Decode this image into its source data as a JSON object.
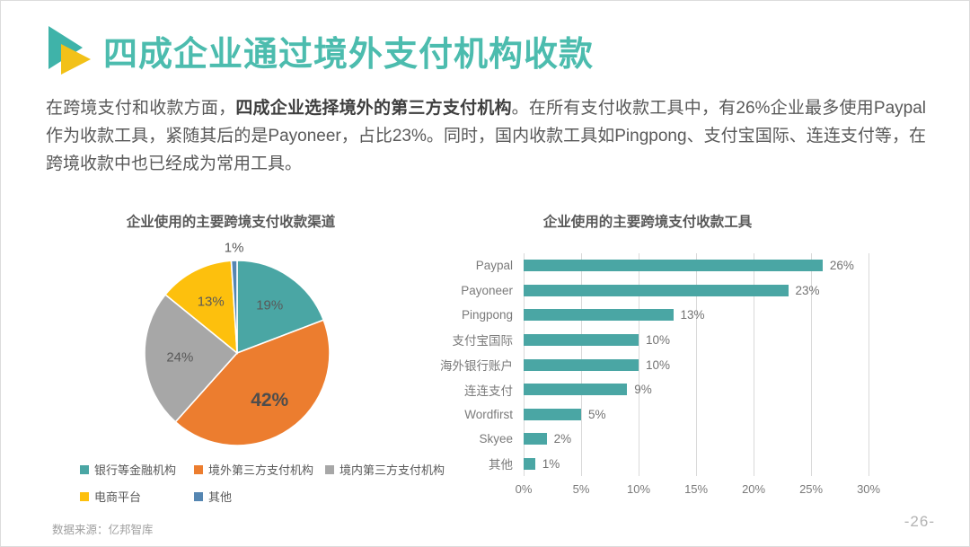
{
  "header": {
    "title": "四成企业通过境外支付机构收款"
  },
  "intro": {
    "part1": "在跨境支付和收款方面，",
    "part2": "四成企业选择境外的第三方支付机构",
    "part3": "。在所有支付收款工具中，有26%企业最多使用Paypal作为收款工具，紧随其后的是Payoneer，占比23%。同时，国内收款工具如Pingpong、支付宝国际、连连支付等，在跨境收款中也已经成为常用工具。"
  },
  "chart_data": [
    {
      "type": "pie",
      "title": "企业使用的主要跨境支付收款渠道",
      "labels": [
        "银行等金融机构",
        "境外第三方支付机构",
        "境内第三方支付机构",
        "电商平台",
        "其他"
      ],
      "values": [
        19,
        42,
        24,
        13,
        1
      ],
      "value_labels": [
        "19%",
        "42%",
        "24%",
        "13%",
        "1%"
      ],
      "colors": [
        "#4AA6A4",
        "#EC7D2F",
        "#A7A7A7",
        "#FDC00D",
        "#5586B2"
      ],
      "legend_position": "bottom",
      "start_angle_deg": 0,
      "direction": "clockwise"
    },
    {
      "type": "bar",
      "orientation": "horizontal",
      "title": "企业使用的主要跨境支付收款工具",
      "categories": [
        "Paypal",
        "Payoneer",
        "Pingpong",
        "支付宝国际",
        "海外银行账户",
        "连连支付",
        "Wordfirst",
        "Skyee",
        "其他"
      ],
      "values": [
        26,
        23,
        13,
        10,
        10,
        9,
        5,
        2,
        1
      ],
      "data_labels": [
        "26%",
        "23%",
        "13%",
        "10%",
        "10%",
        "9%",
        "5%",
        "2%",
        "1%"
      ],
      "x_ticks": [
        "0%",
        "5%",
        "10%",
        "15%",
        "20%",
        "25%",
        "30%"
      ],
      "xlim": [
        0,
        32.8
      ],
      "bar_color": "#4AA6A4",
      "grid": true,
      "xlabel": "",
      "ylabel": ""
    }
  ],
  "footer": {
    "source": "数据来源：亿邦智库",
    "page": "-26-"
  },
  "colors": {
    "accent_teal": "#4CBCAE",
    "logo_teal": "#3FB3A9",
    "logo_yellow": "#F2C118",
    "body_text": "#595959",
    "grid_gray": "#d9d9d9"
  }
}
